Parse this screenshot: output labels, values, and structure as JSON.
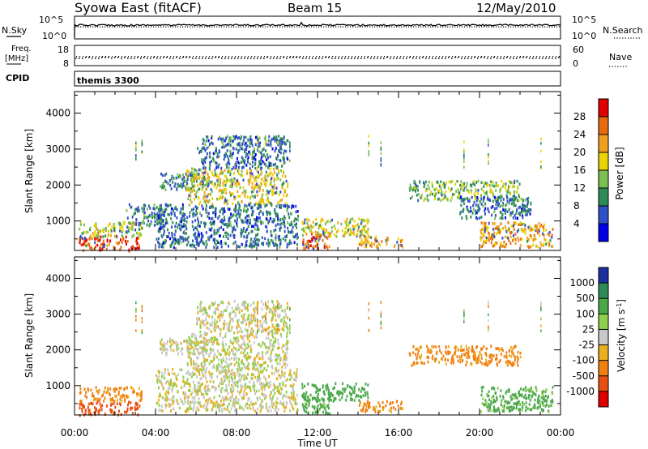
{
  "header": {
    "station": "Syowa East (fitACF)",
    "beam": "Beam 15",
    "date": "12/May/2010"
  },
  "top_panels": {
    "nsky_label": "N.Sky",
    "nsky_tick_hi": "10^5",
    "nsky_tick_lo": "10^0",
    "nsearch_label": "N.Search",
    "freq_label": "Freq.",
    "freq_unit": "[MHz]",
    "freq_ticks": [
      "18",
      "8"
    ],
    "nave_label": "Nave",
    "nave_ticks": [
      "60",
      "0"
    ],
    "cpid_label": "CPID",
    "cpid_value": "themis 3300"
  },
  "axes": {
    "xlabel": "Time UT",
    "ylabel": "Slant Range [km]",
    "xticks": [
      "00:00",
      "04:00",
      "08:00",
      "12:00",
      "16:00",
      "20:00",
      "00:00"
    ],
    "yticks": [
      "1000",
      "2000",
      "3000",
      "4000"
    ]
  },
  "colorbars": {
    "power": {
      "label": "Power [dB]",
      "ticks": [
        "4",
        "8",
        "12",
        "16",
        "20",
        "24",
        "28"
      ],
      "colors": [
        "#0000e6",
        "#3050c8",
        "#2e8b57",
        "#7cbf52",
        "#e8d400",
        "#f0a020",
        "#e86a10",
        "#e00000"
      ]
    },
    "velocity": {
      "label": "Velocity [m s-1]",
      "label_main": "Velocity [m s",
      "label_sup": "-1",
      "label_end": "]",
      "ticks": [
        "1000",
        "500",
        "100",
        "25",
        "-25",
        "-100",
        "-500",
        "-1000"
      ],
      "colors": [
        "#1c2f9e",
        "#2e8b57",
        "#4aa84a",
        "#8fcf4a",
        "#c8c8c8",
        "#e8b020",
        "#f08010",
        "#e85010",
        "#e00000"
      ]
    }
  },
  "chart_data": [
    {
      "type": "heatmap",
      "name": "Power",
      "title": "Syowa East (fitACF) Beam 15 12/May/2010",
      "xlabel": "Time UT",
      "ylabel": "Slant Range [km]",
      "xlim": [
        0,
        24
      ],
      "ylim": [
        180,
        4600
      ],
      "colorbar_label": "Power [dB]",
      "colorbar_range": [
        0,
        32
      ],
      "regions": [
        {
          "t": [
            0.2,
            3.2
          ],
          "r": [
            200,
            600
          ],
          "value": 28
        },
        {
          "t": [
            0.2,
            3.4
          ],
          "r": [
            600,
            1000
          ],
          "value": 16
        },
        {
          "t": [
            2.5,
            4.5
          ],
          "r": [
            900,
            1500
          ],
          "value": 10
        },
        {
          "t": [
            4.2,
            6.5
          ],
          "r": [
            1900,
            2350
          ],
          "value": 10
        },
        {
          "t": [
            5.5,
            10.5
          ],
          "r": [
            1500,
            2500
          ],
          "value": 18
        },
        {
          "t": [
            6.0,
            10.5
          ],
          "r": [
            2500,
            3400
          ],
          "value": 8
        },
        {
          "t": [
            4.0,
            11.0
          ],
          "r": [
            300,
            1500
          ],
          "value": 8
        },
        {
          "t": [
            11.2,
            12.6
          ],
          "r": [
            250,
            700
          ],
          "value": 26
        },
        {
          "t": [
            11.2,
            14.5
          ],
          "r": [
            600,
            1100
          ],
          "value": 18
        },
        {
          "t": [
            14.0,
            16.2
          ],
          "r": [
            300,
            600
          ],
          "value": 22
        },
        {
          "t": [
            16.5,
            22.0
          ],
          "r": [
            1600,
            2150
          ],
          "value": 14
        },
        {
          "t": [
            19.0,
            22.5
          ],
          "r": [
            1100,
            1700
          ],
          "value": 8
        },
        {
          "t": [
            20.0,
            23.6
          ],
          "r": [
            300,
            1000
          ],
          "value": 22
        }
      ]
    },
    {
      "type": "heatmap",
      "name": "Velocity",
      "xlabel": "Time UT",
      "ylabel": "Slant Range [km]",
      "xlim": [
        0,
        24
      ],
      "ylim": [
        180,
        4600
      ],
      "colorbar_label": "Velocity [m s-1]",
      "colorbar_range": [
        -1000,
        1000
      ],
      "regions": [
        {
          "t": [
            0.2,
            3.2
          ],
          "r": [
            200,
            600
          ],
          "value": -500
        },
        {
          "t": [
            0.2,
            3.4
          ],
          "r": [
            600,
            1000
          ],
          "value": -100
        },
        {
          "t": [
            4.2,
            6.5
          ],
          "r": [
            1900,
            2350
          ],
          "value": 0
        },
        {
          "t": [
            5.5,
            10.5
          ],
          "r": [
            1500,
            2500
          ],
          "value": 0
        },
        {
          "t": [
            6.0,
            10.5
          ],
          "r": [
            2500,
            3400
          ],
          "value": 0
        },
        {
          "t": [
            4.0,
            11.0
          ],
          "r": [
            300,
            1500
          ],
          "value": 0
        },
        {
          "t": [
            11.2,
            12.6
          ],
          "r": [
            250,
            700
          ],
          "value": 100
        },
        {
          "t": [
            11.2,
            14.5
          ],
          "r": [
            600,
            1100
          ],
          "value": 200
        },
        {
          "t": [
            14.0,
            16.2
          ],
          "r": [
            300,
            600
          ],
          "value": -100
        },
        {
          "t": [
            16.5,
            22.0
          ],
          "r": [
            1600,
            2150
          ],
          "value": -100
        },
        {
          "t": [
            20.0,
            23.6
          ],
          "r": [
            300,
            1000
          ],
          "value": 100
        }
      ]
    }
  ]
}
